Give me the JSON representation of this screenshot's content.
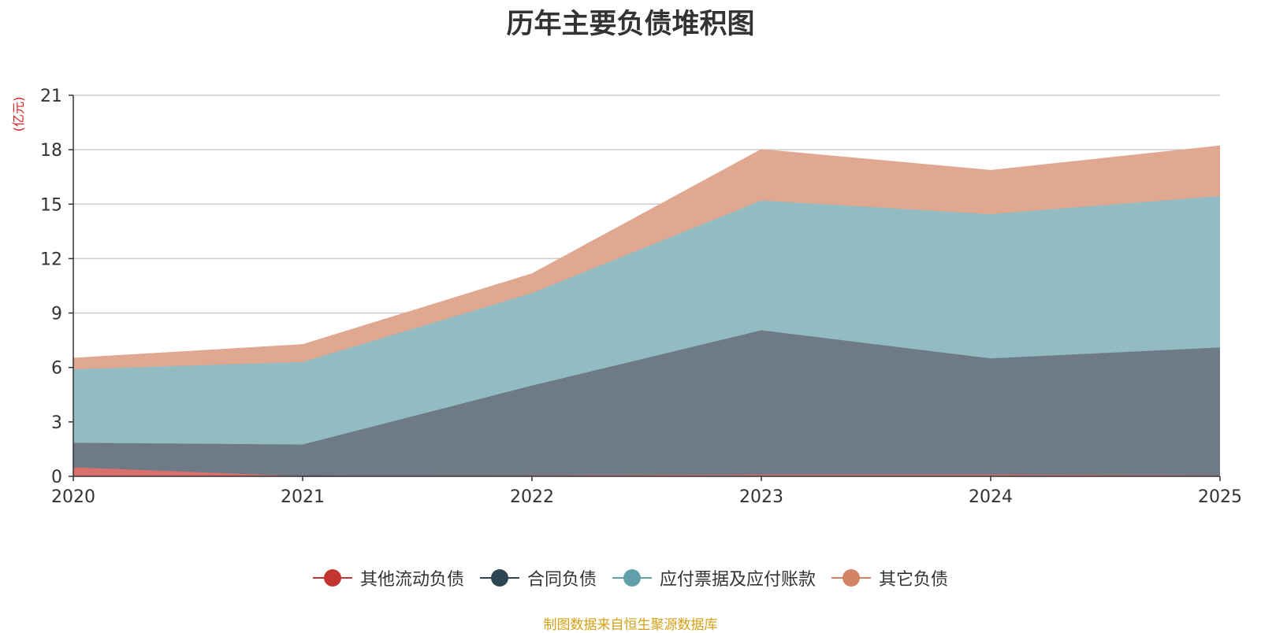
{
  "chart_data": {
    "type": "area",
    "stacked": true,
    "title": "历年主要负债堆积图",
    "unit_label": "(亿元)",
    "x": [
      "2020",
      "2021",
      "2022",
      "2023",
      "2024",
      "2025"
    ],
    "ylim": [
      0,
      21
    ],
    "yticks": [
      "0",
      "3",
      "6",
      "9",
      "12",
      "15",
      "18",
      "21"
    ],
    "grid": true,
    "legend_position": "bottom",
    "series": [
      {
        "name": "其他流动负债",
        "color": "#c23531",
        "fill": "#d9706d",
        "values": [
          0.5,
          0.0,
          0.05,
          0.1,
          0.1,
          0.05
        ]
      },
      {
        "name": "合同负债",
        "color": "#2f4554",
        "fill": "#6e7b86",
        "values": [
          1.35,
          1.75,
          4.95,
          7.95,
          6.4,
          7.05
        ]
      },
      {
        "name": "应付票据及应付账款",
        "color": "#61a0a8",
        "fill": "#93bbc2",
        "values": [
          4.05,
          4.55,
          5.1,
          7.15,
          7.95,
          8.35
        ]
      },
      {
        "name": "其它负债",
        "color": "#d48265",
        "fill": "#e0a791",
        "values": [
          0.6,
          0.95,
          1.05,
          2.8,
          2.4,
          2.75
        ]
      }
    ],
    "source": "制图数据来自恒生聚源数据库"
  }
}
